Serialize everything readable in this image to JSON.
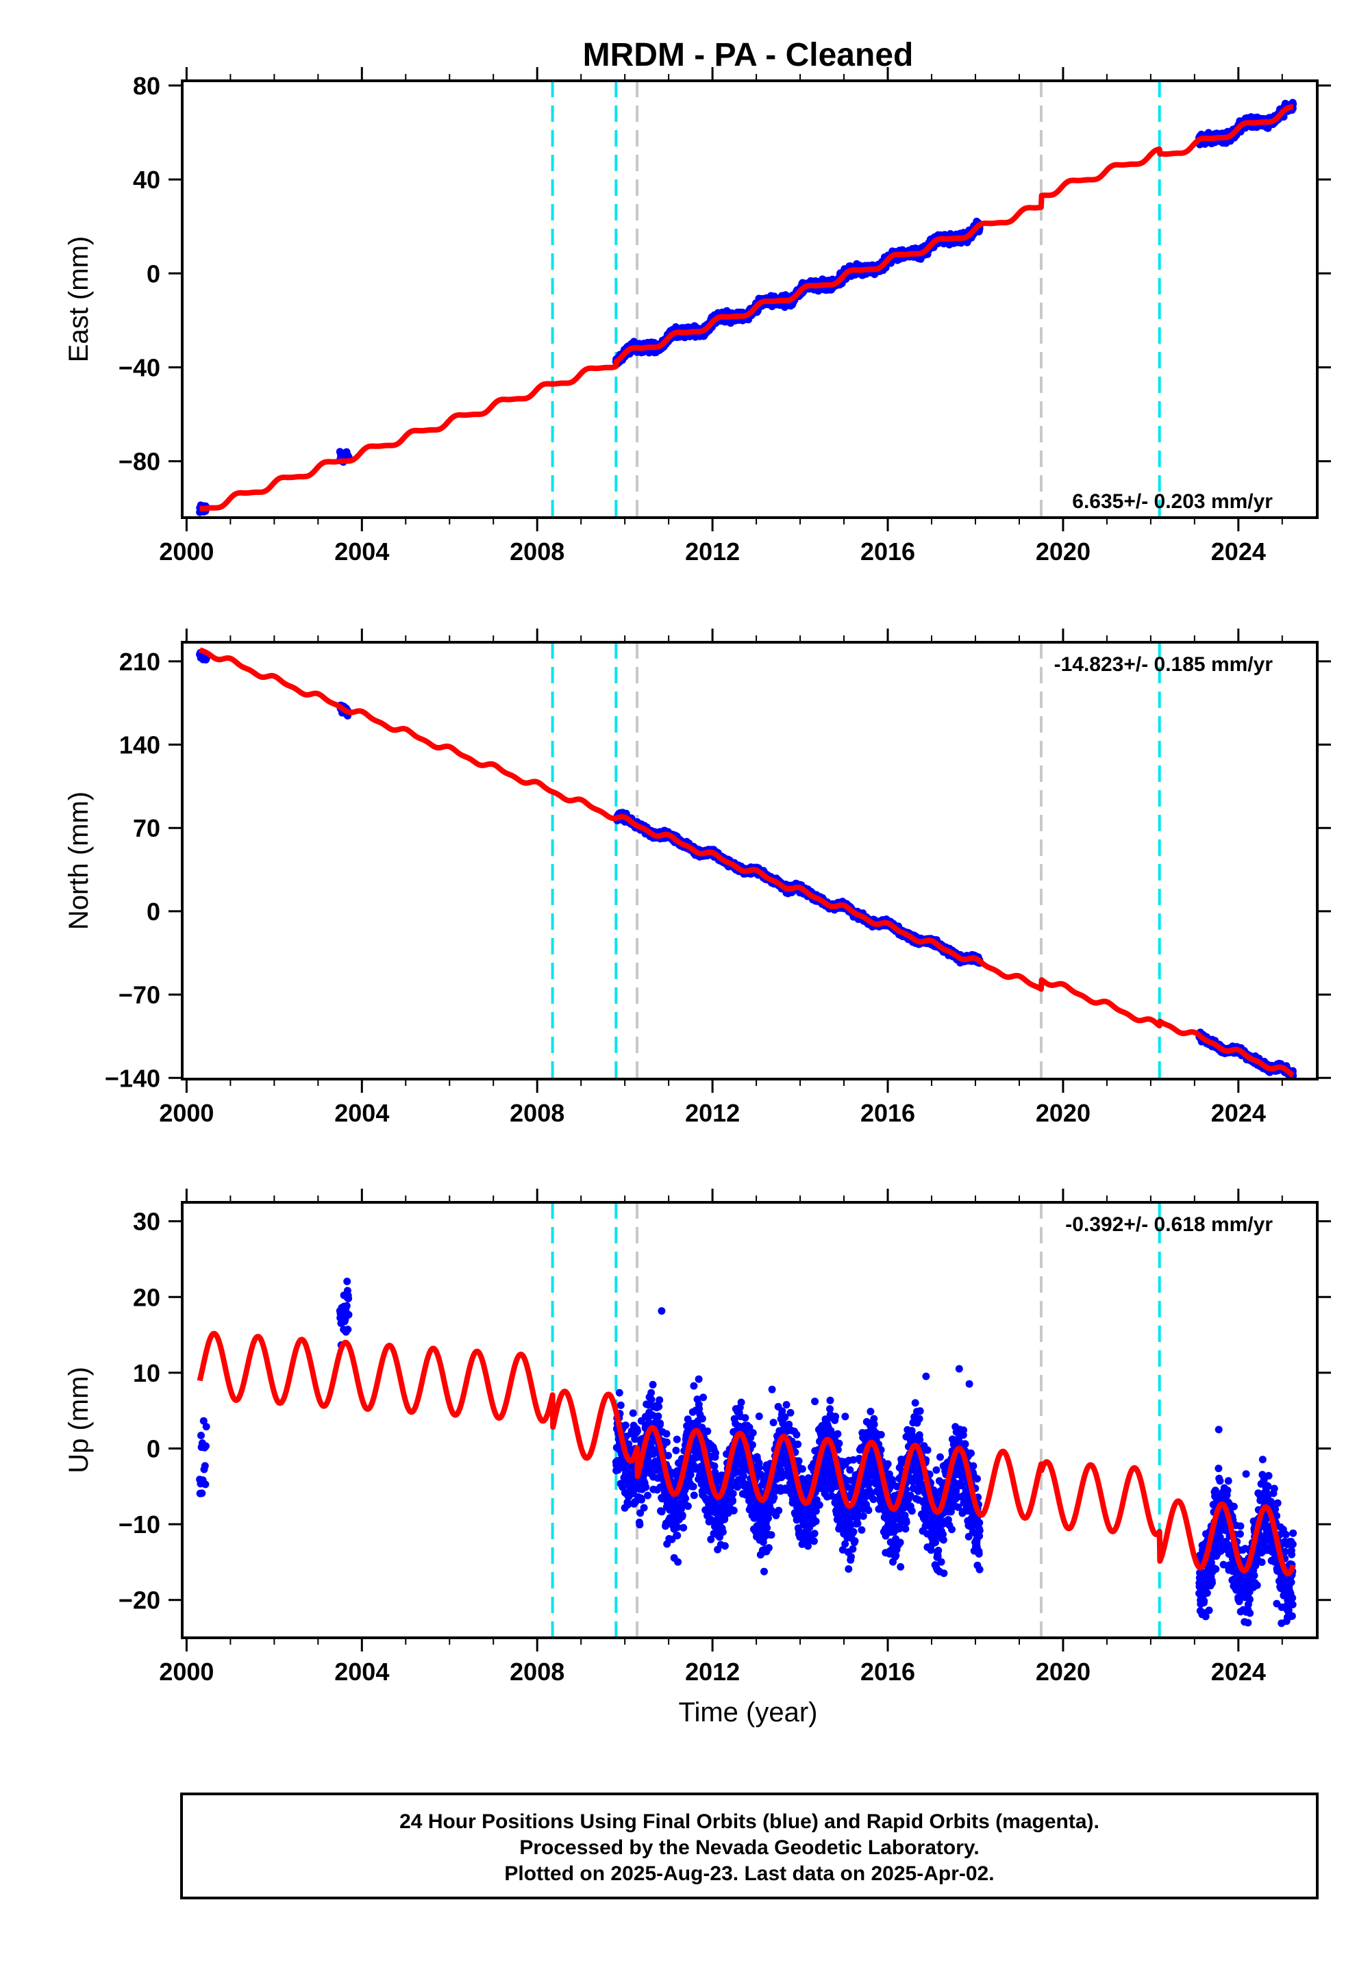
{
  "title": "MRDM  - PA - Cleaned",
  "footer": {
    "line1": "24 Hour Positions Using Final Orbits (blue) and Rapid Orbits (magenta).",
    "line2": "Processed by the Nevada Geodetic Laboratory.",
    "line3": "Plotted on 2025-Aug-23. Last data on 2025-Apr-02."
  },
  "colors": {
    "data": "#0000ff",
    "model": "#ff0000",
    "equipment_change": "#00e5ee",
    "earthquake": "#c8c8c8",
    "frame": "#000000"
  },
  "chart_data": [
    {
      "type": "scatter",
      "component": "east",
      "ylabel": "East (mm)",
      "xlabel": "",
      "xlim": [
        1999.9,
        2025.8
      ],
      "ylim": [
        -104,
        82
      ],
      "xticks": [
        2000,
        2004,
        2008,
        2012,
        2016,
        2020,
        2024
      ],
      "xtick_labels": [
        "2000",
        "2004",
        "2008",
        "2012",
        "2016",
        "2020",
        "2024"
      ],
      "yticks": [
        -80,
        -40,
        0,
        40,
        80
      ],
      "ytick_labels": [
        "−80",
        "−40",
        "0",
        "40",
        "80"
      ],
      "rate_text": "6.635+/- 0.203 mm/yr",
      "rate_position": "bottom-right",
      "equipment_changes": [
        2008.35,
        2009.8
      ],
      "earthquakes": [
        2010.28,
        2019.5
      ],
      "extra_lines": [
        2022.2
      ],
      "model": {
        "rate": 6.635,
        "t0": 2000.3,
        "y0": -101,
        "amp1": 1.5,
        "amp2": 0.4,
        "phase": 0.3,
        "offsets": [
          {
            "t": 2009.8,
            "dy": 2
          },
          {
            "t": 2019.5,
            "dy": 5
          },
          {
            "t": 2022.2,
            "dy": -2
          }
        ]
      },
      "data_segments": [
        {
          "start": 2000.3,
          "end": 2000.45,
          "step": 0.004,
          "noise": 1.2,
          "offset": 0
        },
        {
          "start": 2003.5,
          "end": 2003.7,
          "step": 0.004,
          "noise": 1.5,
          "offset": 2
        },
        {
          "start": 2009.8,
          "end": 2018.1,
          "step": 0.004,
          "noise": 1.5,
          "offset": 0
        },
        {
          "start": 2023.1,
          "end": 2025.25,
          "step": 0.004,
          "noise": 1.5,
          "offset": 0
        }
      ]
    },
    {
      "type": "scatter",
      "component": "north",
      "ylabel": "North (mm)",
      "xlabel": "",
      "xlim": [
        1999.9,
        2025.8
      ],
      "ylim": [
        -141,
        226
      ],
      "xticks": [
        2000,
        2004,
        2008,
        2012,
        2016,
        2020,
        2024
      ],
      "xtick_labels": [
        "2000",
        "2004",
        "2008",
        "2012",
        "2016",
        "2020",
        "2024"
      ],
      "yticks": [
        -140,
        -70,
        0,
        70,
        140,
        210
      ],
      "ytick_labels": [
        "−140",
        "−70",
        "0",
        "70",
        "140",
        "210"
      ],
      "rate_text": "-14.823+/- 0.185 mm/yr",
      "rate_position": "top-right",
      "equipment_changes": [
        2008.35,
        2009.8
      ],
      "earthquakes": [
        2010.28,
        2019.5
      ],
      "extra_lines": [
        2022.2
      ],
      "model": {
        "rate": -14.823,
        "t0": 2000.3,
        "y0": 220,
        "amp1": 2.0,
        "amp2": 1.0,
        "phase": 1.1,
        "offsets": [
          {
            "t": 2019.5,
            "dy": 8
          },
          {
            "t": 2022.2,
            "dy": 4
          }
        ]
      },
      "data_segments": [
        {
          "start": 2000.3,
          "end": 2000.45,
          "step": 0.004,
          "noise": 2.0,
          "offset": -4
        },
        {
          "start": 2003.5,
          "end": 2003.7,
          "step": 0.004,
          "noise": 2.0,
          "offset": 0
        },
        {
          "start": 2009.8,
          "end": 2018.1,
          "step": 0.004,
          "noise": 2.0,
          "offset": 0
        },
        {
          "start": 2023.1,
          "end": 2025.25,
          "step": 0.004,
          "noise": 2.0,
          "offset": 0
        }
      ]
    },
    {
      "type": "scatter",
      "component": "up",
      "ylabel": "Up (mm)",
      "xlabel": "Time (year)",
      "xlim": [
        1999.9,
        2025.8
      ],
      "ylim": [
        -25,
        32.5
      ],
      "xticks": [
        2000,
        2004,
        2008,
        2012,
        2016,
        2020,
        2024
      ],
      "xtick_labels": [
        "2000",
        "2004",
        "2008",
        "2012",
        "2016",
        "2020",
        "2024"
      ],
      "yticks": [
        -20,
        -10,
        0,
        10,
        20,
        30
      ],
      "ytick_labels": [
        "−20",
        "−10",
        "0",
        "10",
        "20",
        "30"
      ],
      "rate_text": "-0.392+/- 0.618 mm/yr",
      "rate_position": "top-right",
      "equipment_changes": [
        2008.35,
        2009.8
      ],
      "earthquakes": [
        2010.28,
        2019.5
      ],
      "extra_lines": [
        2022.2
      ],
      "model": {
        "rate": -0.392,
        "t0": 2000.3,
        "y0": 11,
        "amp1": 4.3,
        "amp2": 0.0,
        "phase": 3.9,
        "offsets": [
          {
            "t": 2008.35,
            "dy": -4.5
          },
          {
            "t": 2010.28,
            "dy": -4
          },
          {
            "t": 2019.5,
            "dy": -1
          },
          {
            "t": 2022.2,
            "dy": -4
          }
        ]
      },
      "data_segments": [
        {
          "start": 2000.3,
          "end": 2000.45,
          "step": 0.01,
          "noise": 3.5,
          "offset": -13
        },
        {
          "start": 2003.5,
          "end": 2003.7,
          "step": 0.006,
          "noise": 3.0,
          "offset": 4
        },
        {
          "start": 2009.8,
          "end": 2018.1,
          "step": 0.0035,
          "noise": 4.2,
          "offset": -1.5
        },
        {
          "start": 2023.1,
          "end": 2025.25,
          "step": 0.004,
          "noise": 4.0,
          "offset": -1.5
        }
      ]
    }
  ]
}
